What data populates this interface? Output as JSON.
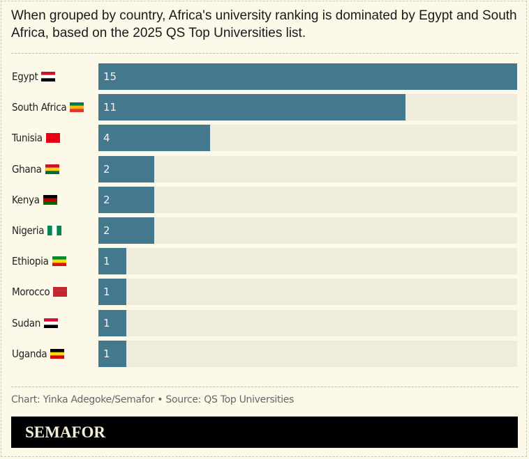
{
  "title": "When grouped by country, Africa's university ranking is dominated by Egypt and South Africa, based on the 2025 QS Top Universities list.",
  "source": "Chart: Yinka Adegoke/Semafor • Source: QS Top Universities",
  "brand": "SEMAFOR",
  "colors": {
    "bar": "#44788c",
    "track": "#f0ecdb",
    "background": "#fcf9e9"
  },
  "chart_data": {
    "type": "bar",
    "orientation": "horizontal",
    "categories": [
      "Egypt",
      "South Africa",
      "Tunisia",
      "Ghana",
      "Kenya",
      "Nigeria",
      "Ethiopia",
      "Morocco",
      "Sudan",
      "Uganda"
    ],
    "values": [
      15,
      11,
      4,
      2,
      2,
      2,
      1,
      1,
      1,
      1
    ],
    "xlim": [
      0,
      15
    ],
    "flags": [
      [
        "#ce1126",
        "#ffffff",
        "#000000"
      ],
      [
        "#007a4d",
        "#ffb612",
        "#de3831"
      ],
      [
        "#e70013",
        "#e70013",
        "#e70013"
      ],
      [
        "#ce1126",
        "#fcd116",
        "#006b3f"
      ],
      [
        "#000000",
        "#bb0000",
        "#006600"
      ],
      [
        "#008751",
        "#ffffff",
        "#008751"
      ],
      [
        "#078930",
        "#fcdd09",
        "#da121a"
      ],
      [
        "#c1272d",
        "#c1272d",
        "#c1272d"
      ],
      [
        "#d21034",
        "#ffffff",
        "#000000"
      ],
      [
        "#000000",
        "#fcdc04",
        "#d90000"
      ]
    ],
    "flag_orientation": [
      "h",
      "h",
      "h",
      "h",
      "h",
      "v",
      "h",
      "h",
      "h",
      "h"
    ],
    "data_labels": true,
    "grid": false
  }
}
